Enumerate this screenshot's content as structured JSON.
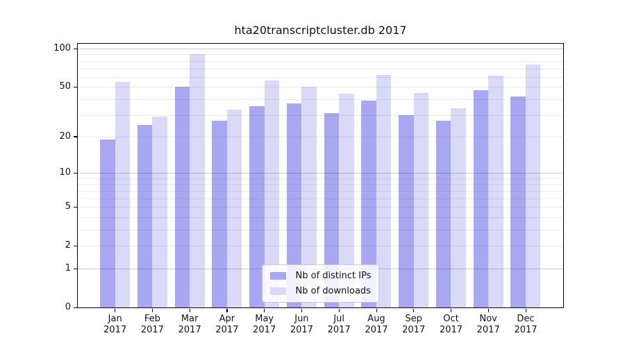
{
  "title": "hta20transcriptcluster.db 2017",
  "chart_data": {
    "type": "bar",
    "title": "hta20transcriptcluster.db 2017",
    "categories": [
      "Jan",
      "Feb",
      "Mar",
      "Apr",
      "May",
      "Jun",
      "Jul",
      "Aug",
      "Sep",
      "Oct",
      "Nov",
      "Dec"
    ],
    "year_label": "2017",
    "series": [
      {
        "name": "Nb of distinct IPs",
        "color": "#a8a8f2",
        "values": [
          19,
          25,
          50,
          27,
          35,
          37,
          31,
          39,
          30,
          27,
          47,
          42
        ]
      },
      {
        "name": "Nb of downloads",
        "color": "#dadaf8",
        "values": [
          55,
          29,
          90,
          33,
          56,
          50,
          44,
          62,
          45,
          34,
          61,
          75
        ]
      }
    ],
    "y_scale": "log1p",
    "y_ticks": [
      0,
      1,
      2,
      5,
      10,
      20,
      50,
      100
    ],
    "y_major_grid": [
      1,
      10,
      100
    ],
    "y_minor_grid": [
      2,
      3,
      4,
      5,
      6,
      7,
      8,
      9,
      20,
      30,
      40,
      50,
      60,
      70,
      80,
      90
    ],
    "ylim": [
      0,
      109
    ],
    "grid": true,
    "legend_position": "lower center",
    "colors": {
      "major_grid": "rgba(0,0,0,0.20)",
      "minor_grid": "rgba(0,0,0,0.08)",
      "axis": "#000000",
      "text": "#111111"
    }
  }
}
